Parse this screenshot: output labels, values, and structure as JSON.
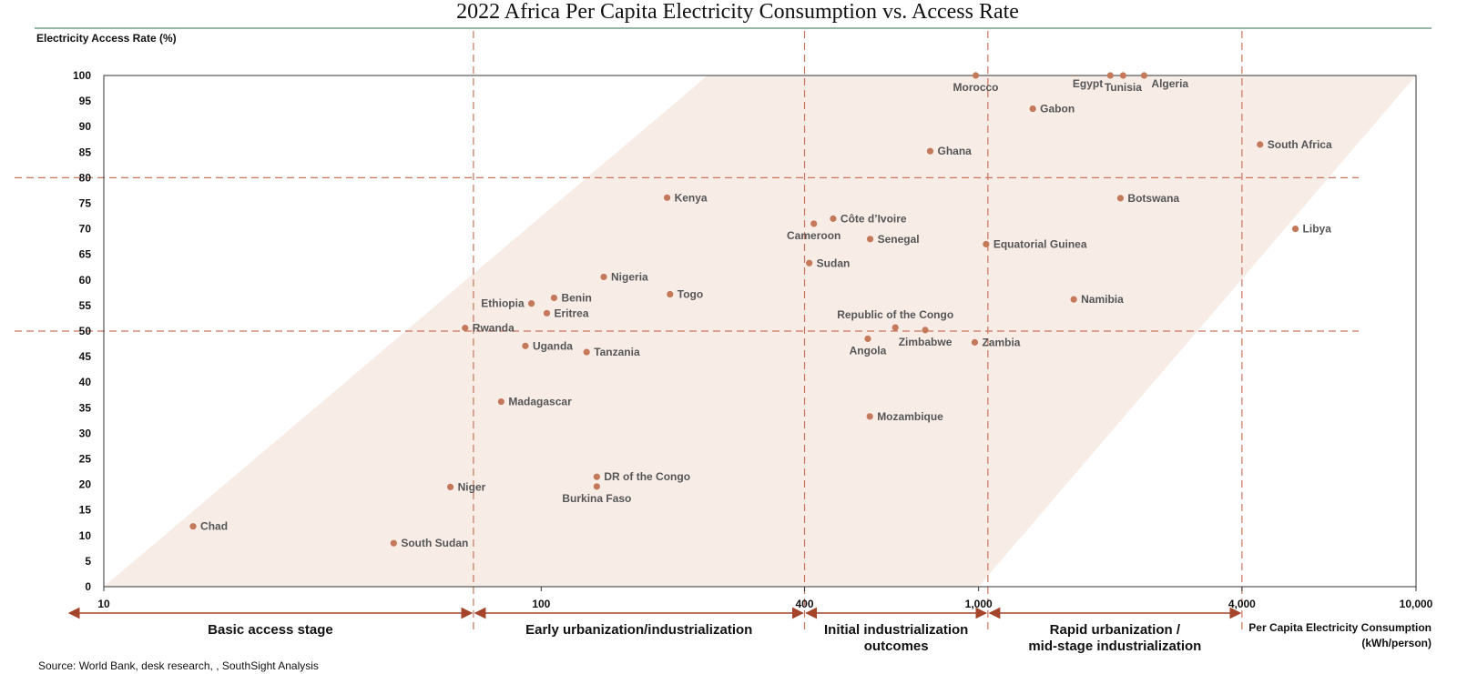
{
  "chart_data": {
    "type": "scatter",
    "title": "2022 Africa Per Capita Electricity Consumption vs. Access Rate",
    "ylabel": "Electricity Access Rate (%)",
    "xlabel_lines": [
      "Per Capita Electricity Consumption",
      "(kWh/person)"
    ],
    "x_scale": "log",
    "xlim": [
      10,
      10000
    ],
    "ylim": [
      0,
      100
    ],
    "x_ticks": [
      {
        "value": 10,
        "label": "10"
      },
      {
        "value": 100,
        "label": "100"
      },
      {
        "value": 400,
        "label": "400"
      },
      {
        "value": 1000,
        "label": "1,000"
      },
      {
        "value": 4000,
        "label": "4,000"
      },
      {
        "value": 10000,
        "label": "10,000"
      }
    ],
    "y_ticks": [
      0,
      5,
      10,
      15,
      20,
      25,
      30,
      35,
      40,
      45,
      50,
      55,
      60,
      65,
      70,
      75,
      80,
      85,
      90,
      95,
      100
    ],
    "reference_lines_y": [
      50,
      80
    ],
    "stage_boundaries_x": [
      70,
      400,
      1050,
      4000
    ],
    "stages": [
      {
        "label_lines": [
          "Basic access stage"
        ]
      },
      {
        "label_lines": [
          "Early urbanization/industrialization"
        ]
      },
      {
        "label_lines": [
          "Initial industrialization",
          "outcomes"
        ]
      },
      {
        "label_lines": [
          "Rapid urbanization /",
          "mid-stage industrialization"
        ]
      }
    ],
    "band": {
      "lower_edge": [
        [
          10,
          0
        ],
        [
          1000,
          0
        ],
        [
          10000,
          100
        ]
      ],
      "upper_edge": [
        [
          10,
          0
        ],
        [
          240,
          100
        ]
      ]
    },
    "points": [
      {
        "name": "Chad",
        "x": 16,
        "y": 11.8,
        "pos": "right"
      },
      {
        "name": "South Sudan",
        "x": 46,
        "y": 8.5,
        "pos": "right"
      },
      {
        "name": "Niger",
        "x": 62,
        "y": 19.5,
        "pos": "right"
      },
      {
        "name": "Rwanda",
        "x": 67,
        "y": 50.6,
        "pos": "right"
      },
      {
        "name": "Madagascar",
        "x": 81,
        "y": 36.2,
        "pos": "right"
      },
      {
        "name": "Uganda",
        "x": 92,
        "y": 47.1,
        "pos": "right"
      },
      {
        "name": "Ethiopia",
        "x": 95,
        "y": 55.4,
        "pos": "left"
      },
      {
        "name": "Eritrea",
        "x": 103,
        "y": 53.5,
        "pos": "right"
      },
      {
        "name": "Benin",
        "x": 107,
        "y": 56.5,
        "pos": "right"
      },
      {
        "name": "Tanzania",
        "x": 127,
        "y": 45.9,
        "pos": "right"
      },
      {
        "name": "DR of the Congo",
        "x": 134,
        "y": 21.5,
        "pos": "right"
      },
      {
        "name": "Burkina Faso",
        "x": 134,
        "y": 19.6,
        "pos": "below"
      },
      {
        "name": "Nigeria",
        "x": 139,
        "y": 60.6,
        "pos": "right"
      },
      {
        "name": "Kenya",
        "x": 194,
        "y": 76.1,
        "pos": "right"
      },
      {
        "name": "Togo",
        "x": 197,
        "y": 57.2,
        "pos": "right"
      },
      {
        "name": "Sudan",
        "x": 410,
        "y": 63.3,
        "pos": "right"
      },
      {
        "name": "Cameroon",
        "x": 420,
        "y": 71.0,
        "pos": "below"
      },
      {
        "name": "Côte d’Ivoire",
        "x": 465,
        "y": 72.0,
        "pos": "right"
      },
      {
        "name": "Angola",
        "x": 558,
        "y": 48.5,
        "pos": "below"
      },
      {
        "name": "Mozambique",
        "x": 564,
        "y": 33.3,
        "pos": "right"
      },
      {
        "name": "Senegal",
        "x": 565,
        "y": 68.0,
        "pos": "right"
      },
      {
        "name": "Republic of the Congo",
        "x": 645,
        "y": 50.7,
        "pos": "above"
      },
      {
        "name": "Zimbabwe",
        "x": 755,
        "y": 50.2,
        "pos": "below"
      },
      {
        "name": "Ghana",
        "x": 775,
        "y": 85.2,
        "pos": "right"
      },
      {
        "name": "Zambia",
        "x": 980,
        "y": 47.8,
        "pos": "right"
      },
      {
        "name": "Morocco",
        "x": 985,
        "y": 100,
        "pos": "below"
      },
      {
        "name": "Equatorial Guinea",
        "x": 1040,
        "y": 67.0,
        "pos": "right"
      },
      {
        "name": "Gabon",
        "x": 1330,
        "y": 93.5,
        "pos": "right"
      },
      {
        "name": "Namibia",
        "x": 1650,
        "y": 56.2,
        "pos": "right"
      },
      {
        "name": "Egypt",
        "x": 2000,
        "y": 100,
        "pos": "below-left"
      },
      {
        "name": "Botswana",
        "x": 2110,
        "y": 76.0,
        "pos": "right"
      },
      {
        "name": "Tunisia",
        "x": 2140,
        "y": 100,
        "pos": "below"
      },
      {
        "name": "Algeria",
        "x": 2390,
        "y": 100,
        "pos": "below-right"
      },
      {
        "name": "South Africa",
        "x": 4400,
        "y": 86.5,
        "pos": "right"
      },
      {
        "name": "Libya",
        "x": 5300,
        "y": 70.0,
        "pos": "right"
      }
    ]
  },
  "source_text": "Source: World Bank, desk research, , SouthSight Analysis",
  "colors": {
    "point": "#c47a5a",
    "guide": "#c9755e",
    "arrow": "#a4442a",
    "band": "#f8ece7",
    "frame": "#333333",
    "title_rule": "#2e6b4f"
  }
}
